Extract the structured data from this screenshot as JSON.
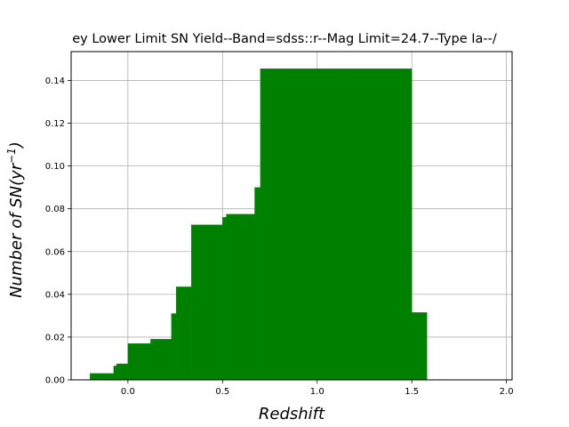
{
  "chart_data": {
    "type": "bar",
    "title": "ey Lower Limit SN Yield--Band=sdss::r--Mag Limit=24.7--Type Ia--/",
    "xlabel": "Redshift",
    "ylabel_main": "Number of SN(yr",
    "ylabel_sup": "−1",
    "ylabel_close": ")",
    "xlim": [
      -0.3,
      2.03
    ],
    "ylim": [
      0.0,
      0.1535
    ],
    "xticks": [
      {
        "value": 0.0,
        "label": "0.0"
      },
      {
        "value": 0.5,
        "label": "0.5"
      },
      {
        "value": 1.0,
        "label": "1.0"
      },
      {
        "value": 1.5,
        "label": "1.5"
      },
      {
        "value": 2.0,
        "label": "2.0"
      }
    ],
    "yticks": [
      {
        "value": 0.0,
        "label": "0.00"
      },
      {
        "value": 0.02,
        "label": "0.02"
      },
      {
        "value": 0.04,
        "label": "0.04"
      },
      {
        "value": 0.06,
        "label": "0.06"
      },
      {
        "value": 0.08,
        "label": "0.08"
      },
      {
        "value": 0.1,
        "label": "0.10"
      },
      {
        "value": 0.12,
        "label": "0.12"
      },
      {
        "value": 0.14,
        "label": "0.14"
      }
    ],
    "grid": true,
    "bar_color": "#008000",
    "bars": [
      {
        "x0": -0.2,
        "x1": -0.075,
        "value": 0.003
      },
      {
        "x0": -0.075,
        "x1": -0.06,
        "value": 0.0065
      },
      {
        "x0": -0.06,
        "x1": 0.0,
        "value": 0.0075
      },
      {
        "x0": 0.0,
        "x1": 0.12,
        "value": 0.017
      },
      {
        "x0": 0.12,
        "x1": 0.23,
        "value": 0.019
      },
      {
        "x0": 0.23,
        "x1": 0.255,
        "value": 0.031
      },
      {
        "x0": 0.255,
        "x1": 0.335,
        "value": 0.0435
      },
      {
        "x0": 0.335,
        "x1": 0.5,
        "value": 0.0725
      },
      {
        "x0": 0.5,
        "x1": 0.52,
        "value": 0.076
      },
      {
        "x0": 0.52,
        "x1": 0.67,
        "value": 0.0775
      },
      {
        "x0": 0.67,
        "x1": 0.7,
        "value": 0.09
      },
      {
        "x0": 0.7,
        "x1": 1.5,
        "value": 0.1455
      },
      {
        "x0": 1.5,
        "x1": 1.58,
        "value": 0.0315
      }
    ]
  }
}
